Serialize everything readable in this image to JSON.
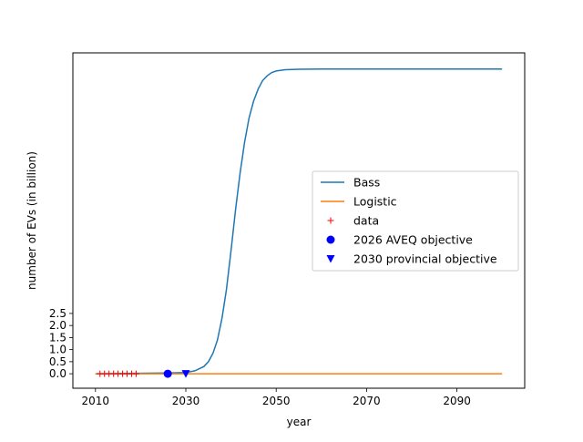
{
  "chart_data": {
    "type": "line",
    "xlabel": "year",
    "ylabel": "number of EVs (in billion)",
    "xlim": [
      2005,
      2105
    ],
    "ylim": [
      -0.6,
      13.3
    ],
    "x_ticks": [
      2010,
      2030,
      2050,
      2070,
      2090
    ],
    "y_ticks": [
      0.0,
      0.5,
      1.0,
      1.5,
      2.0,
      2.5
    ],
    "legend_position": "center-right",
    "series": [
      {
        "name": "Bass",
        "kind": "line",
        "color": "#1f77b4",
        "x": [
          2010,
          2026,
          2030,
          2032,
          2034,
          2035,
          2036,
          2037,
          2038,
          2039,
          2040,
          2041,
          2042,
          2043,
          2044,
          2045,
          2046,
          2047,
          2048,
          2049,
          2050,
          2052,
          2055,
          2060,
          2100
        ],
        "y": [
          0.0,
          0.03,
          0.05,
          0.12,
          0.3,
          0.5,
          0.85,
          1.4,
          2.3,
          3.5,
          5.1,
          6.8,
          8.3,
          9.6,
          10.6,
          11.3,
          11.8,
          12.15,
          12.35,
          12.48,
          12.55,
          12.6,
          12.62,
          12.63,
          12.63
        ]
      },
      {
        "name": "Logistic",
        "kind": "line",
        "color": "#ff7f0e",
        "x": [
          2010,
          2030,
          2060,
          2100
        ],
        "y": [
          0.0,
          0.0,
          0.0,
          0.0
        ]
      },
      {
        "name": "data",
        "kind": "marker-plus",
        "color": "#ff0000",
        "x": [
          2011,
          2012,
          2013,
          2014,
          2015,
          2016,
          2017,
          2018,
          2019
        ],
        "y": [
          0.0,
          0.0,
          0.0,
          0.0,
          0.0,
          0.0,
          0.0,
          0.0,
          0.0
        ]
      },
      {
        "name": "2026 AVEQ objective",
        "kind": "marker-circle",
        "color": "#0000ff",
        "x": [
          2026
        ],
        "y": [
          0.0
        ]
      },
      {
        "name": "2030 provincial objective",
        "kind": "marker-triangle",
        "color": "#0000ff",
        "x": [
          2030
        ],
        "y": [
          0.0
        ]
      }
    ]
  }
}
